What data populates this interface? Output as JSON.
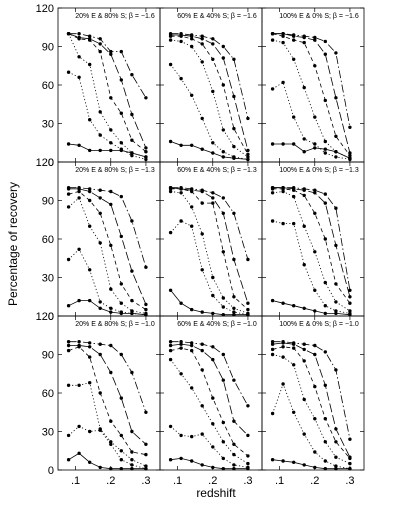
{
  "chart_data": {
    "type": "line",
    "xlabel": "redshift",
    "ylabel": "Percentage of recovery",
    "xticks": [
      ".1",
      ".2",
      ".3"
    ],
    "xlim": [
      0.05,
      0.34
    ],
    "yticks": [
      "0",
      "30",
      "60",
      "90",
      "120"
    ],
    "ylim": [
      0,
      120
    ],
    "x": [
      0.08,
      0.11,
      0.14,
      0.17,
      0.2,
      0.23,
      0.26,
      0.3
    ],
    "line_styles": [
      "solid",
      "dotted",
      "dotted",
      "dashed",
      "long-dashed",
      "dash-dot"
    ],
    "panels": [
      {
        "row": 0,
        "col": 0,
        "title": "20% E  &  80% S; β = −1.6",
        "series": [
          [
            14,
            13,
            9,
            9,
            9,
            9,
            7,
            4
          ],
          [
            70,
            66,
            33,
            21,
            15,
            10,
            5,
            2
          ],
          [
            100,
            82,
            76,
            39,
            25,
            15,
            7,
            4
          ],
          [
            100,
            96,
            95,
            86,
            50,
            38,
            17,
            8
          ],
          [
            100,
            97,
            96,
            92,
            84,
            64,
            37,
            11
          ],
          [
            100,
            100,
            98,
            96,
            86,
            86,
            68,
            50
          ]
        ]
      },
      {
        "row": 0,
        "col": 1,
        "title": "60% E  &  40% S; β = −1.6",
        "series": [
          [
            16,
            13,
            13,
            10,
            7,
            4,
            3,
            2
          ],
          [
            76,
            65,
            52,
            34,
            15,
            8,
            4,
            2
          ],
          [
            95,
            94,
            90,
            78,
            55,
            25,
            12,
            4
          ],
          [
            98,
            98,
            96,
            92,
            80,
            60,
            26,
            6
          ],
          [
            99,
            99,
            98,
            96,
            92,
            81,
            51,
            9
          ],
          [
            100,
            100,
            99,
            98,
            96,
            90,
            80,
            34
          ]
        ]
      },
      {
        "row": 0,
        "col": 2,
        "title": "100% E  &  0% S; β = −1.6",
        "series": [
          [
            14,
            14,
            14,
            8,
            11,
            10,
            8,
            3
          ],
          [
            57,
            62,
            35,
            18,
            14,
            7,
            4,
            2
          ],
          [
            95,
            93,
            80,
            58,
            35,
            16,
            8,
            3
          ],
          [
            100,
            98,
            95,
            93,
            75,
            48,
            20,
            5
          ],
          [
            100,
            100,
            98,
            97,
            95,
            84,
            50,
            7
          ],
          [
            100,
            100,
            99,
            98,
            97,
            94,
            85,
            27
          ]
        ]
      },
      {
        "row": 1,
        "col": 0,
        "title": "20% E  &  80% S; β = −1.3",
        "series": [
          [
            8,
            12,
            12,
            6,
            3,
            2,
            2,
            1
          ],
          [
            44,
            52,
            36,
            11,
            6,
            3,
            2,
            1
          ],
          [
            85,
            92,
            70,
            57,
            21,
            10,
            4,
            2
          ],
          [
            95,
            97,
            90,
            80,
            55,
            25,
            12,
            5
          ],
          [
            99,
            99,
            97,
            92,
            87,
            62,
            35,
            9
          ],
          [
            100,
            100,
            99,
            98,
            97,
            93,
            74,
            38
          ]
        ]
      },
      {
        "row": 1,
        "col": 1,
        "title": "60% E  &  40% S; β = −1.3",
        "series": [
          [
            20,
            10,
            5,
            3,
            2,
            1,
            1,
            1
          ],
          [
            65,
            74,
            70,
            36,
            16,
            7,
            3,
            1
          ],
          [
            97,
            96,
            85,
            64,
            30,
            14,
            6,
            2
          ],
          [
            99,
            99,
            97,
            88,
            88,
            50,
            15,
            5
          ],
          [
            100,
            99,
            98,
            97,
            92,
            80,
            44,
            10
          ],
          [
            100,
            100,
            99,
            98,
            96,
            92,
            80,
            44
          ]
        ]
      },
      {
        "row": 1,
        "col": 2,
        "title": "100% E  &  0% S; β = −1.3",
        "series": [
          [
            12,
            10,
            8,
            6,
            4,
            2,
            2,
            1
          ],
          [
            74,
            72,
            72,
            40,
            20,
            8,
            4,
            2
          ],
          [
            96,
            97,
            93,
            70,
            50,
            26,
            11,
            4
          ],
          [
            99,
            99,
            98,
            94,
            80,
            60,
            25,
            10
          ],
          [
            100,
            100,
            99,
            98,
            96,
            88,
            55,
            15
          ],
          [
            100,
            100,
            100,
            99,
            98,
            95,
            84,
            20
          ]
        ]
      },
      {
        "row": 2,
        "col": 0,
        "title": "20% E  &  80% S; β = −1.0",
        "series": [
          [
            8,
            13,
            6,
            2,
            1,
            1,
            1,
            1
          ],
          [
            27,
            34,
            30,
            31,
            20,
            8,
            4,
            1
          ],
          [
            66,
            66,
            68,
            32,
            22,
            15,
            8,
            3
          ],
          [
            93,
            96,
            88,
            60,
            38,
            27,
            14,
            12
          ],
          [
            97,
            97,
            96,
            90,
            76,
            56,
            30,
            20
          ],
          [
            100,
            100,
            99,
            98,
            97,
            90,
            76,
            45
          ]
        ]
      },
      {
        "row": 2,
        "col": 1,
        "title": "60% E  &  40% S; β = −1.0",
        "series": [
          [
            8,
            9,
            7,
            4,
            2,
            1,
            1,
            1
          ],
          [
            34,
            27,
            26,
            28,
            18,
            9,
            4,
            2
          ],
          [
            86,
            75,
            64,
            50,
            36,
            22,
            12,
            5
          ],
          [
            93,
            95,
            93,
            78,
            56,
            37,
            20,
            11
          ],
          [
            97,
            98,
            97,
            93,
            86,
            70,
            38,
            27
          ],
          [
            100,
            100,
            99,
            98,
            96,
            90,
            70,
            50
          ]
        ]
      },
      {
        "row": 2,
        "col": 2,
        "title": "100% E  &  0% S; β = −1.0",
        "series": [
          [
            8,
            7,
            6,
            4,
            2,
            1,
            1,
            1
          ],
          [
            44,
            67,
            45,
            28,
            14,
            7,
            3,
            1
          ],
          [
            90,
            88,
            82,
            55,
            40,
            22,
            10,
            5
          ],
          [
            94,
            96,
            95,
            85,
            65,
            40,
            22,
            9
          ],
          [
            98,
            99,
            98,
            94,
            90,
            66,
            32,
            10
          ],
          [
            100,
            100,
            99,
            98,
            97,
            92,
            78,
            24
          ]
        ]
      }
    ]
  }
}
